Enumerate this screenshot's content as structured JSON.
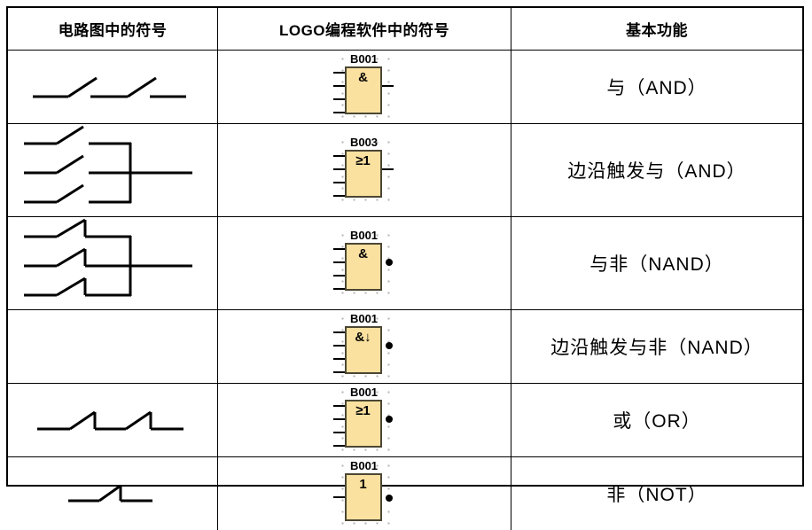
{
  "table": {
    "headers": [
      "电路图中的符号",
      "LOGO编程软件中的符号",
      "基本功能"
    ],
    "rows": [
      {
        "circuit": "two-series-NO-contacts",
        "block": {
          "id": "B001",
          "symbol": "&",
          "inputs": 4,
          "negated": false
        },
        "function": "与（AND）"
      },
      {
        "circuit": "three-parallel-NO-contacts",
        "block": {
          "id": "B003",
          "symbol": "≥1",
          "inputs": 4,
          "negated": false
        },
        "function": "边沿触发与（AND）"
      },
      {
        "circuit": "three-parallel-NC-contacts",
        "block": {
          "id": "B001",
          "symbol": "&",
          "inputs": 4,
          "negated": true
        },
        "function": "与非（NAND）"
      },
      {
        "circuit": "none",
        "block": {
          "id": "B001",
          "symbol": "&↓",
          "inputs": 4,
          "negated": true
        },
        "function": "边沿触发与非（NAND）"
      },
      {
        "circuit": "two-series-NC-contacts",
        "block": {
          "id": "B001",
          "symbol": "≥1",
          "inputs": 4,
          "negated": true
        },
        "function": "或（OR）"
      },
      {
        "circuit": "one-NC-contact",
        "block": {
          "id": "B001",
          "symbol": "1",
          "inputs": 1,
          "negated": true
        },
        "function": "非（NOT）"
      }
    ],
    "colors": {
      "block_fill": "#fbe1a0",
      "block_border": "#4b4734",
      "grid_line": "#000000",
      "selection_dots": "#b4b4b4"
    }
  }
}
